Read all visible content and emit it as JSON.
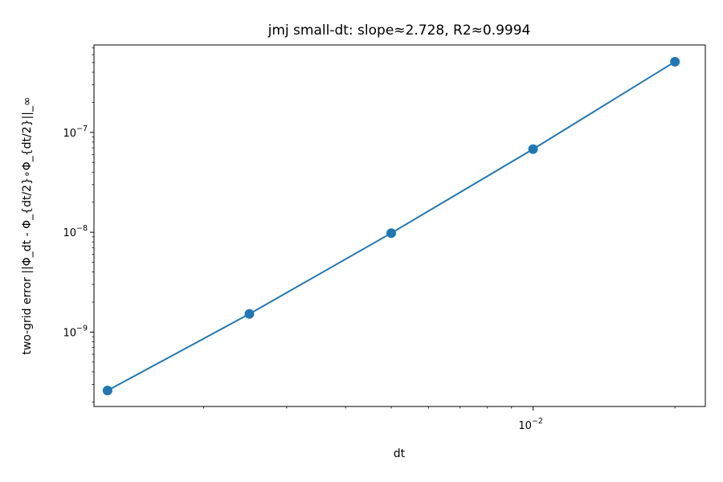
{
  "chart_data": {
    "type": "line",
    "title": "jmj small-dt: slope≈2.728, R2≈0.9994",
    "xlabel": "dt",
    "ylabel": "two-grid error ||Φ_dt - Φ_{dt/2}∘Φ_{dt/2}||_∞",
    "x_scale": "log",
    "y_scale": "log",
    "xlim": [
      0.00117,
      0.0232
    ],
    "ylim": [
      1.8e-10,
      7.5e-07
    ],
    "x_major_ticks": [
      {
        "value": 0.01,
        "base": "10",
        "exp": "−2"
      }
    ],
    "y_major_ticks": [
      {
        "value": 1e-09,
        "base": "10",
        "exp": "−9"
      },
      {
        "value": 1e-08,
        "base": "10",
        "exp": "−8"
      },
      {
        "value": 1e-07,
        "base": "10",
        "exp": "−7"
      }
    ],
    "x_minor_ticks": [
      0.002,
      0.003,
      0.004,
      0.005,
      0.006,
      0.007,
      0.008,
      0.009,
      0.02
    ],
    "y_minor_ticks": [
      2e-10,
      3e-10,
      4e-10,
      5e-10,
      6e-10,
      7e-10,
      8e-10,
      9e-10,
      2e-09,
      3e-09,
      4e-09,
      5e-09,
      6e-09,
      7e-09,
      8e-09,
      9e-09,
      2e-08,
      3e-08,
      4e-08,
      5e-08,
      6e-08,
      7e-08,
      8e-08,
      9e-08,
      2e-07,
      3e-07,
      4e-07,
      5e-07,
      6e-07,
      7e-07
    ],
    "grid": false,
    "series": [
      {
        "color": "#1f77b4",
        "marker": "circle",
        "x": [
          0.00125,
          0.0025,
          0.005,
          0.01,
          0.02
        ],
        "y": [
          2.6e-10,
          1.52e-09,
          9.8e-09,
          6.8e-08,
          5.1e-07
        ]
      }
    ]
  }
}
